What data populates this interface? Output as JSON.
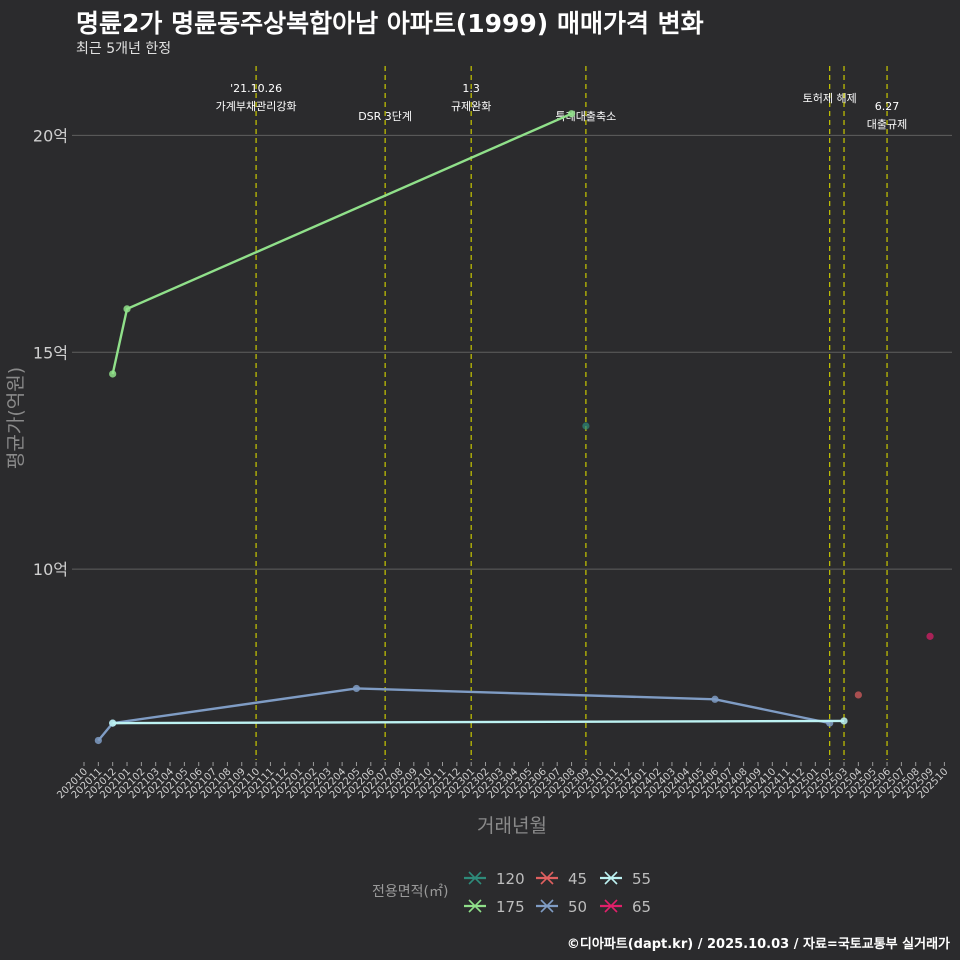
{
  "title": "명륜2가 명륜동주상복합아남 아파트(1999) 매매가격 변화",
  "subtitle": "최근 5개년 한정",
  "caption": "©디아파트(dapt.kr) / 2025.10.03 / 자료=국토교통부 실거래가",
  "colors": {
    "background": "#2b2b2d",
    "grid": "#5f5f5f",
    "event_line": "#c8c800",
    "120": "#2e8b7a",
    "175": "#90e08a",
    "45": "#e06060",
    "50": "#7f9cc4",
    "55": "#bdf2f2",
    "65": "#e0206a"
  },
  "chart_data": {
    "type": "line",
    "title": "명륜2가 명륜동주상복합아남 아파트(1999) 매매가격 변화",
    "xlabel": "거래년월",
    "ylabel": "평균가(억원)",
    "ylim": [
      5.6,
      21.6
    ],
    "yticks": [
      10,
      15,
      20
    ],
    "ytick_labels": [
      "10억",
      "15억",
      "20억"
    ],
    "x_categories": [
      "202010",
      "202011",
      "202012",
      "202101",
      "202102",
      "202103",
      "202104",
      "202105",
      "202106",
      "202107",
      "202108",
      "202109",
      "202110",
      "202111",
      "202112",
      "202201",
      "202202",
      "202203",
      "202204",
      "202205",
      "202206",
      "202207",
      "202208",
      "202209",
      "202210",
      "202211",
      "202212",
      "202301",
      "202302",
      "202303",
      "202304",
      "202305",
      "202306",
      "202307",
      "202308",
      "202309",
      "202310",
      "202311",
      "202312",
      "202401",
      "202402",
      "202403",
      "202404",
      "202405",
      "202406",
      "202407",
      "202408",
      "202409",
      "202410",
      "202411",
      "202412",
      "202501",
      "202502",
      "202503",
      "202504",
      "202505",
      "202506",
      "202507",
      "202508",
      "202509",
      "202510"
    ],
    "legend_title": "전용면적(㎡)",
    "series": [
      {
        "name": "120",
        "points": [
          {
            "x": "202309",
            "y": 13.3
          }
        ]
      },
      {
        "name": "175",
        "points": [
          {
            "x": "202012",
            "y": 14.5
          },
          {
            "x": "202101",
            "y": 16.0
          },
          {
            "x": "202308",
            "y": 20.5
          }
        ]
      },
      {
        "name": "45",
        "points": [
          {
            "x": "202504",
            "y": 7.1
          }
        ]
      },
      {
        "name": "50",
        "points": [
          {
            "x": "202011",
            "y": 6.05
          },
          {
            "x": "202012",
            "y": 6.45
          },
          {
            "x": "202205",
            "y": 7.25
          },
          {
            "x": "202406",
            "y": 7.0
          },
          {
            "x": "202502",
            "y": 6.45
          }
        ]
      },
      {
        "name": "55",
        "points": [
          {
            "x": "202012",
            "y": 6.45
          },
          {
            "x": "202503",
            "y": 6.5
          }
        ]
      },
      {
        "name": "65",
        "points": [
          {
            "x": "202509",
            "y": 8.45
          }
        ]
      }
    ],
    "events": [
      {
        "x": "202110",
        "line1": "'21.10.26",
        "line2": "가계부채관리강화",
        "row": 0
      },
      {
        "x": "202207",
        "line1": "DSR 3단계",
        "line2": "",
        "row": 1
      },
      {
        "x": "202301",
        "line1": "1.3",
        "line2": "규제완화",
        "row": 0
      },
      {
        "x": "202309",
        "line1": "특례대출축소",
        "line2": "",
        "row": 1
      },
      {
        "x": "202502",
        "line1": "토허제 해제",
        "line2": "",
        "row": 0
      },
      {
        "x": "202503",
        "line1": "",
        "line2": "",
        "row": 0
      },
      {
        "x": "202506",
        "line1": "6.27",
        "line2": "대출규제",
        "row": 2
      }
    ]
  }
}
